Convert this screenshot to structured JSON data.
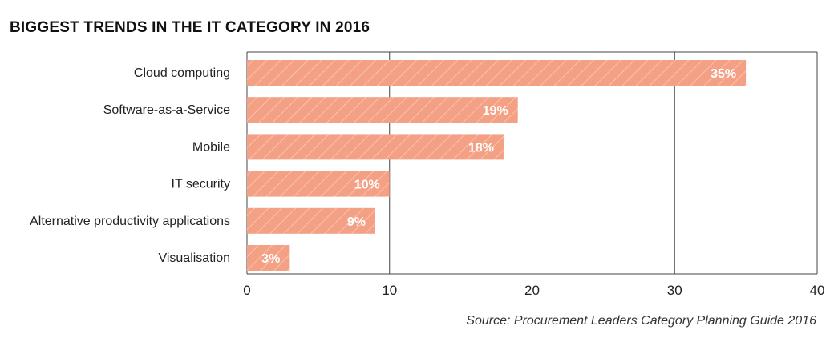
{
  "title": "BIGGEST TRENDS IN THE IT CATEGORY IN 2016",
  "source": "Source: Procurement Leaders Category Planning Guide 2016",
  "colors": {
    "bar": "#f4a084",
    "hatch": "#f8c3b1",
    "grid": "#444444",
    "text": "#222222"
  },
  "chart_data": {
    "type": "bar",
    "orientation": "horizontal",
    "categories": [
      "Cloud computing",
      "Software-as-a-Service",
      "Mobile",
      "IT security",
      "Alternative productivity applications",
      "Visualisation"
    ],
    "values": [
      35,
      19,
      18,
      10,
      9,
      3
    ],
    "data_labels": [
      "35%",
      "19%",
      "18%",
      "10%",
      "9%",
      "3%"
    ],
    "title": "BIGGEST TRENDS IN THE IT CATEGORY IN 2016",
    "xlabel": "",
    "ylabel": "",
    "xlim": [
      0,
      40
    ],
    "xticks": [
      0,
      10,
      20,
      30,
      40
    ],
    "xtick_labels": [
      "0",
      "10",
      "20",
      "30",
      "40"
    ],
    "grid": "vertical",
    "legend": "none"
  }
}
